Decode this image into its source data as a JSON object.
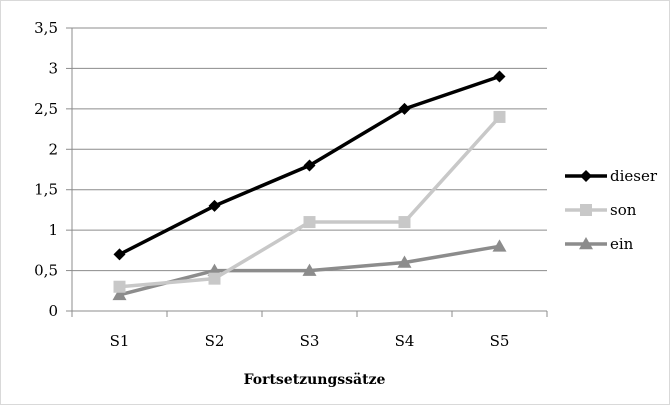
{
  "chart_data": {
    "type": "line",
    "categories": [
      "S1",
      "S2",
      "S3",
      "S4",
      "S5"
    ],
    "series": [
      {
        "name": "dieser",
        "values": [
          0.7,
          1.3,
          1.8,
          2.5,
          2.9
        ],
        "color": "#000000",
        "marker": "diamond"
      },
      {
        "name": "son",
        "values": [
          0.3,
          0.4,
          1.1,
          1.1,
          2.4
        ],
        "color": "#c8c8c8",
        "marker": "square"
      },
      {
        "name": "ein",
        "values": [
          0.2,
          0.5,
          0.5,
          0.6,
          0.8
        ],
        "color": "#8c8c8c",
        "marker": "triangle"
      }
    ],
    "yticks": [
      "0",
      "0,5",
      "1",
      "1,5",
      "2",
      "2,5",
      "3",
      "3,5"
    ],
    "ylim": [
      0,
      3.5
    ],
    "xlabel": "Fortsetzungssätze",
    "ylabel": "",
    "grid": "horizontal",
    "legend_position": "right"
  }
}
